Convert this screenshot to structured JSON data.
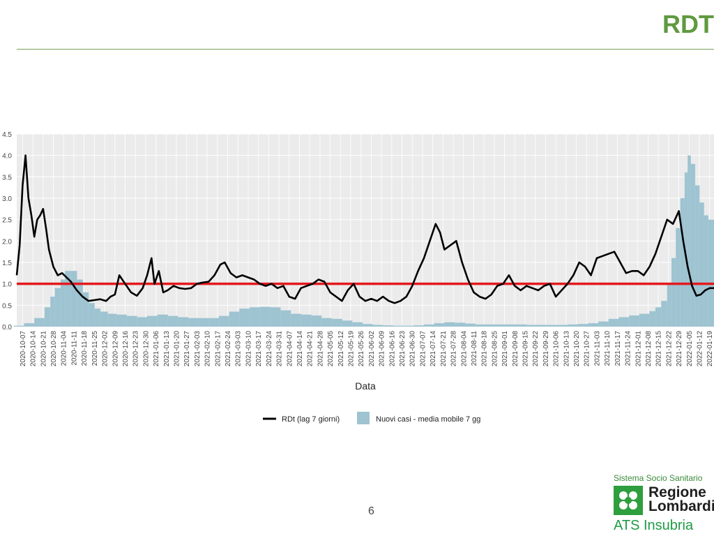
{
  "slide": {
    "title": "RDT",
    "page_number": "6"
  },
  "logo": {
    "top_text": "Sistema Socio Sanitario",
    "region_line1": "Regione",
    "region_line2": "Lombardia",
    "agency": "ATS Insubria"
  },
  "colors": {
    "title": "#5f9a3f",
    "rdt_line": "#000000",
    "threshold_line": "#e31a1c",
    "bars": "#9ec3d1",
    "panel_bg": "#ebebeb",
    "grid": "#ffffff"
  },
  "chart_data": {
    "type": "bar",
    "title": "",
    "xlabel": "Data",
    "ylabel": "",
    "ylim": [
      0,
      4.5
    ],
    "y_ticks": [
      "0.0",
      "0.5",
      "1.0",
      "1.5",
      "2.0",
      "2.5",
      "3.0",
      "3.5",
      "4.0",
      "4.5"
    ],
    "grid": true,
    "legend_position": "bottom",
    "x_ticks": [
      "2020-10-07",
      "2020-10-14",
      "2020-10-21",
      "2020-10-28",
      "2020-11-04",
      "2020-11-11",
      "2020-11-18",
      "2020-11-25",
      "2020-12-02",
      "2020-12-09",
      "2020-12-16",
      "2020-12-23",
      "2020-12-30",
      "2021-01-06",
      "2021-01-13",
      "2021-01-20",
      "2021-01-27",
      "2021-02-03",
      "2021-02-10",
      "2021-02-17",
      "2021-02-24",
      "2021-03-03",
      "2021-03-10",
      "2021-03-17",
      "2021-03-24",
      "2021-03-31",
      "2021-04-07",
      "2021-04-14",
      "2021-04-21",
      "2021-04-28",
      "2021-05-05",
      "2021-05-12",
      "2021-05-19",
      "2021-05-26",
      "2021-06-02",
      "2021-06-09",
      "2021-06-16",
      "2021-06-23",
      "2021-06-30",
      "2021-07-07",
      "2021-07-14",
      "2021-07-21",
      "2021-07-28",
      "2021-08-04",
      "2021-08-11",
      "2021-08-18",
      "2021-08-25",
      "2021-09-01",
      "2021-09-08",
      "2021-09-15",
      "2021-09-22",
      "2021-09-29",
      "2021-10-06",
      "2021-10-13",
      "2021-10-20",
      "2021-10-27",
      "2021-11-03",
      "2021-11-10",
      "2021-11-17",
      "2021-11-24",
      "2021-12-01",
      "2021-12-08",
      "2021-12-15",
      "2021-12-22",
      "2021-12-29",
      "2022-01-05",
      "2022-01-12",
      "2022-01-19"
    ],
    "threshold": 1.0,
    "series": [
      {
        "name": "RDt (lag 7 giorni)",
        "kind": "line",
        "x": [
          "2020-10-03",
          "2020-10-05",
          "2020-10-07",
          "2020-10-09",
          "2020-10-11",
          "2020-10-13",
          "2020-10-15",
          "2020-10-17",
          "2020-10-19",
          "2020-10-21",
          "2020-10-23",
          "2020-10-25",
          "2020-10-28",
          "2020-10-31",
          "2020-11-03",
          "2020-11-06",
          "2020-11-09",
          "2020-11-13",
          "2020-11-17",
          "2020-11-21",
          "2020-11-25",
          "2020-11-29",
          "2020-12-03",
          "2020-12-06",
          "2020-12-09",
          "2020-12-12",
          "2020-12-16",
          "2020-12-20",
          "2020-12-24",
          "2020-12-28",
          "2020-12-31",
          "2021-01-03",
          "2021-01-05",
          "2021-01-08",
          "2021-01-11",
          "2021-01-14",
          "2021-01-18",
          "2021-01-22",
          "2021-01-26",
          "2021-01-30",
          "2021-02-03",
          "2021-02-07",
          "2021-02-11",
          "2021-02-15",
          "2021-02-19",
          "2021-02-22",
          "2021-02-26",
          "2021-03-02",
          "2021-03-06",
          "2021-03-10",
          "2021-03-14",
          "2021-03-18",
          "2021-03-22",
          "2021-03-26",
          "2021-03-30",
          "2021-04-03",
          "2021-04-07",
          "2021-04-11",
          "2021-04-15",
          "2021-04-19",
          "2021-04-23",
          "2021-04-27",
          "2021-05-01",
          "2021-05-05",
          "2021-05-09",
          "2021-05-13",
          "2021-05-17",
          "2021-05-21",
          "2021-05-25",
          "2021-05-29",
          "2021-06-02",
          "2021-06-06",
          "2021-06-10",
          "2021-06-14",
          "2021-06-18",
          "2021-06-22",
          "2021-06-26",
          "2021-06-30",
          "2021-07-04",
          "2021-07-08",
          "2021-07-12",
          "2021-07-16",
          "2021-07-19",
          "2021-07-22",
          "2021-07-26",
          "2021-07-30",
          "2021-08-03",
          "2021-08-07",
          "2021-08-11",
          "2021-08-15",
          "2021-08-19",
          "2021-08-23",
          "2021-08-27",
          "2021-08-31",
          "2021-09-04",
          "2021-09-08",
          "2021-09-12",
          "2021-09-16",
          "2021-09-20",
          "2021-09-24",
          "2021-09-28",
          "2021-10-02",
          "2021-10-06",
          "2021-10-10",
          "2021-10-14",
          "2021-10-18",
          "2021-10-22",
          "2021-10-26",
          "2021-10-30",
          "2021-11-03",
          "2021-11-07",
          "2021-11-11",
          "2021-11-15",
          "2021-11-19",
          "2021-11-23",
          "2021-11-27",
          "2021-12-01",
          "2021-12-05",
          "2021-12-09",
          "2021-12-13",
          "2021-12-17",
          "2021-12-21",
          "2021-12-25",
          "2021-12-29",
          "2022-01-01",
          "2022-01-04",
          "2022-01-07",
          "2022-01-10",
          "2022-01-13",
          "2022-01-16",
          "2022-01-19",
          "2022-01-22"
        ],
        "values": [
          1.2,
          1.9,
          3.3,
          4.0,
          3.0,
          2.6,
          2.1,
          2.5,
          2.6,
          2.75,
          2.3,
          1.8,
          1.4,
          1.2,
          1.25,
          1.15,
          1.05,
          0.85,
          0.7,
          0.6,
          0.62,
          0.64,
          0.6,
          0.7,
          0.75,
          1.2,
          1.0,
          0.8,
          0.72,
          0.9,
          1.2,
          1.6,
          1.0,
          1.3,
          0.8,
          0.85,
          0.95,
          0.9,
          0.88,
          0.9,
          1.0,
          1.03,
          1.05,
          1.2,
          1.45,
          1.5,
          1.25,
          1.15,
          1.2,
          1.15,
          1.1,
          1.0,
          0.95,
          1.0,
          0.9,
          0.95,
          0.7,
          0.65,
          0.9,
          0.95,
          1.0,
          1.1,
          1.05,
          0.8,
          0.7,
          0.6,
          0.85,
          1.0,
          0.7,
          0.6,
          0.65,
          0.6,
          0.7,
          0.6,
          0.55,
          0.6,
          0.7,
          0.95,
          1.3,
          1.6,
          2.0,
          2.4,
          2.2,
          1.8,
          1.9,
          2.0,
          1.5,
          1.1,
          0.8,
          0.7,
          0.65,
          0.75,
          0.95,
          1.0,
          1.2,
          0.95,
          0.85,
          0.95,
          0.9,
          0.85,
          0.95,
          1.0,
          0.7,
          0.85,
          1.0,
          1.2,
          1.5,
          1.4,
          1.2,
          1.6,
          1.65,
          1.7,
          1.75,
          1.5,
          1.25,
          1.3,
          1.3,
          1.2,
          1.4,
          1.7,
          2.1,
          2.5,
          2.4,
          2.7,
          2.0,
          1.4,
          0.95,
          0.72,
          0.75,
          0.85,
          0.9,
          0.9
        ]
      },
      {
        "name": "Nuovi casi - media mobile 7 gg",
        "kind": "bar",
        "x": [
          "2020-10-01",
          "2020-10-08",
          "2020-10-15",
          "2020-10-22",
          "2020-10-26",
          "2020-10-29",
          "2020-11-02",
          "2020-11-05",
          "2020-11-09",
          "2020-11-13",
          "2020-11-17",
          "2020-11-21",
          "2020-11-25",
          "2020-11-29",
          "2020-12-04",
          "2020-12-10",
          "2020-12-17",
          "2020-12-24",
          "2020-12-31",
          "2021-01-07",
          "2021-01-14",
          "2021-01-21",
          "2021-01-28",
          "2021-02-04",
          "2021-02-11",
          "2021-02-18",
          "2021-02-25",
          "2021-03-04",
          "2021-03-11",
          "2021-03-18",
          "2021-03-25",
          "2021-04-01",
          "2021-04-08",
          "2021-04-15",
          "2021-04-22",
          "2021-04-29",
          "2021-05-06",
          "2021-05-13",
          "2021-05-20",
          "2021-05-27",
          "2021-06-03",
          "2021-06-10",
          "2021-06-17",
          "2021-06-24",
          "2021-07-01",
          "2021-07-08",
          "2021-07-15",
          "2021-07-22",
          "2021-07-29",
          "2021-08-05",
          "2021-08-12",
          "2021-08-19",
          "2021-08-26",
          "2021-09-02",
          "2021-09-09",
          "2021-09-16",
          "2021-09-23",
          "2021-09-30",
          "2021-10-07",
          "2021-10-14",
          "2021-10-21",
          "2021-10-28",
          "2021-11-04",
          "2021-11-11",
          "2021-11-18",
          "2021-11-25",
          "2021-12-02",
          "2021-12-09",
          "2021-12-13",
          "2021-12-17",
          "2021-12-21",
          "2021-12-24",
          "2021-12-27",
          "2021-12-30",
          "2022-01-02",
          "2022-01-04",
          "2022-01-06",
          "2022-01-09",
          "2022-01-12",
          "2022-01-15",
          "2022-01-18",
          "2022-01-22"
        ],
        "values": [
          0.02,
          0.08,
          0.2,
          0.45,
          0.7,
          0.9,
          1.1,
          1.3,
          1.3,
          1.1,
          0.8,
          0.55,
          0.42,
          0.35,
          0.3,
          0.28,
          0.25,
          0.22,
          0.25,
          0.28,
          0.25,
          0.22,
          0.2,
          0.2,
          0.2,
          0.25,
          0.35,
          0.42,
          0.45,
          0.46,
          0.45,
          0.38,
          0.3,
          0.28,
          0.26,
          0.2,
          0.18,
          0.14,
          0.1,
          0.06,
          0.04,
          0.03,
          0.02,
          0.02,
          0.03,
          0.05,
          0.08,
          0.1,
          0.09,
          0.07,
          0.05,
          0.05,
          0.05,
          0.05,
          0.05,
          0.04,
          0.04,
          0.04,
          0.04,
          0.05,
          0.06,
          0.08,
          0.12,
          0.18,
          0.22,
          0.26,
          0.3,
          0.36,
          0.45,
          0.6,
          1.0,
          1.6,
          2.3,
          3.0,
          3.6,
          4.0,
          3.8,
          3.3,
          2.9,
          2.6,
          2.5,
          2.4
        ]
      }
    ]
  }
}
